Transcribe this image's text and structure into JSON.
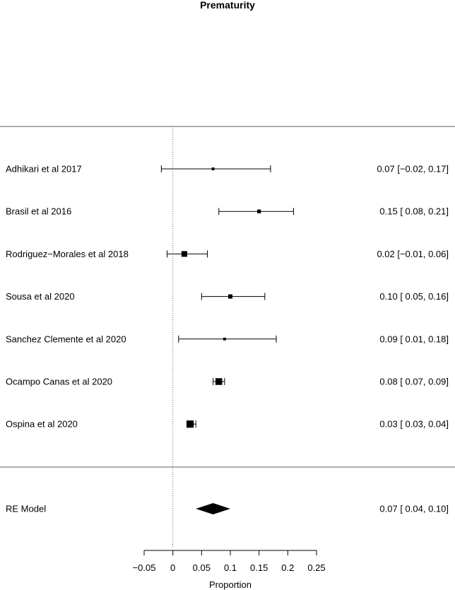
{
  "chart_data": {
    "type": "forest",
    "title": "Prematurity",
    "xlabel": "Proportion",
    "xlim": [
      -0.05,
      0.25
    ],
    "ticks": [
      -0.05,
      0,
      0.05,
      0.1,
      0.15,
      0.2,
      0.25
    ],
    "tick_labels": [
      "−0.05",
      "0",
      "0.05",
      "0.1",
      "0.15",
      "0.2",
      "0.25"
    ],
    "reference_line": 0,
    "studies": [
      {
        "name": "Adhikari et al 2017",
        "estimate": 0.07,
        "lower": -0.02,
        "upper": 0.17,
        "ci_text": "0.07 [−0.02, 0.17]",
        "weight": 1
      },
      {
        "name": "Brasil et al 2016",
        "estimate": 0.15,
        "lower": 0.08,
        "upper": 0.21,
        "ci_text": "0.15 [ 0.08, 0.21]",
        "weight": 2
      },
      {
        "name": "Rodriguez−Morales et al 2018",
        "estimate": 0.02,
        "lower": -0.01,
        "upper": 0.06,
        "ci_text": "0.02 [−0.01, 0.06]",
        "weight": 4
      },
      {
        "name": "Sousa et al 2020",
        "estimate": 0.1,
        "lower": 0.05,
        "upper": 0.16,
        "ci_text": "0.10 [ 0.05, 0.16]",
        "weight": 2.5
      },
      {
        "name": "Sanchez Clemente et al 2020",
        "estimate": 0.09,
        "lower": 0.01,
        "upper": 0.18,
        "ci_text": "0.09 [ 0.01, 0.18]",
        "weight": 1
      },
      {
        "name": "Ocampo Canas et al 2020",
        "estimate": 0.08,
        "lower": 0.07,
        "upper": 0.09,
        "ci_text": "0.08 [ 0.07, 0.09]",
        "weight": 5
      },
      {
        "name": "Ospina et al 2020",
        "estimate": 0.03,
        "lower": 0.03,
        "upper": 0.04,
        "ci_text": "0.03 [ 0.03, 0.04]",
        "weight": 5.5
      }
    ],
    "summary": {
      "name": "RE Model",
      "estimate": 0.07,
      "lower": 0.04,
      "upper": 0.1,
      "ci_text": "0.07 [ 0.04, 0.10]"
    }
  }
}
